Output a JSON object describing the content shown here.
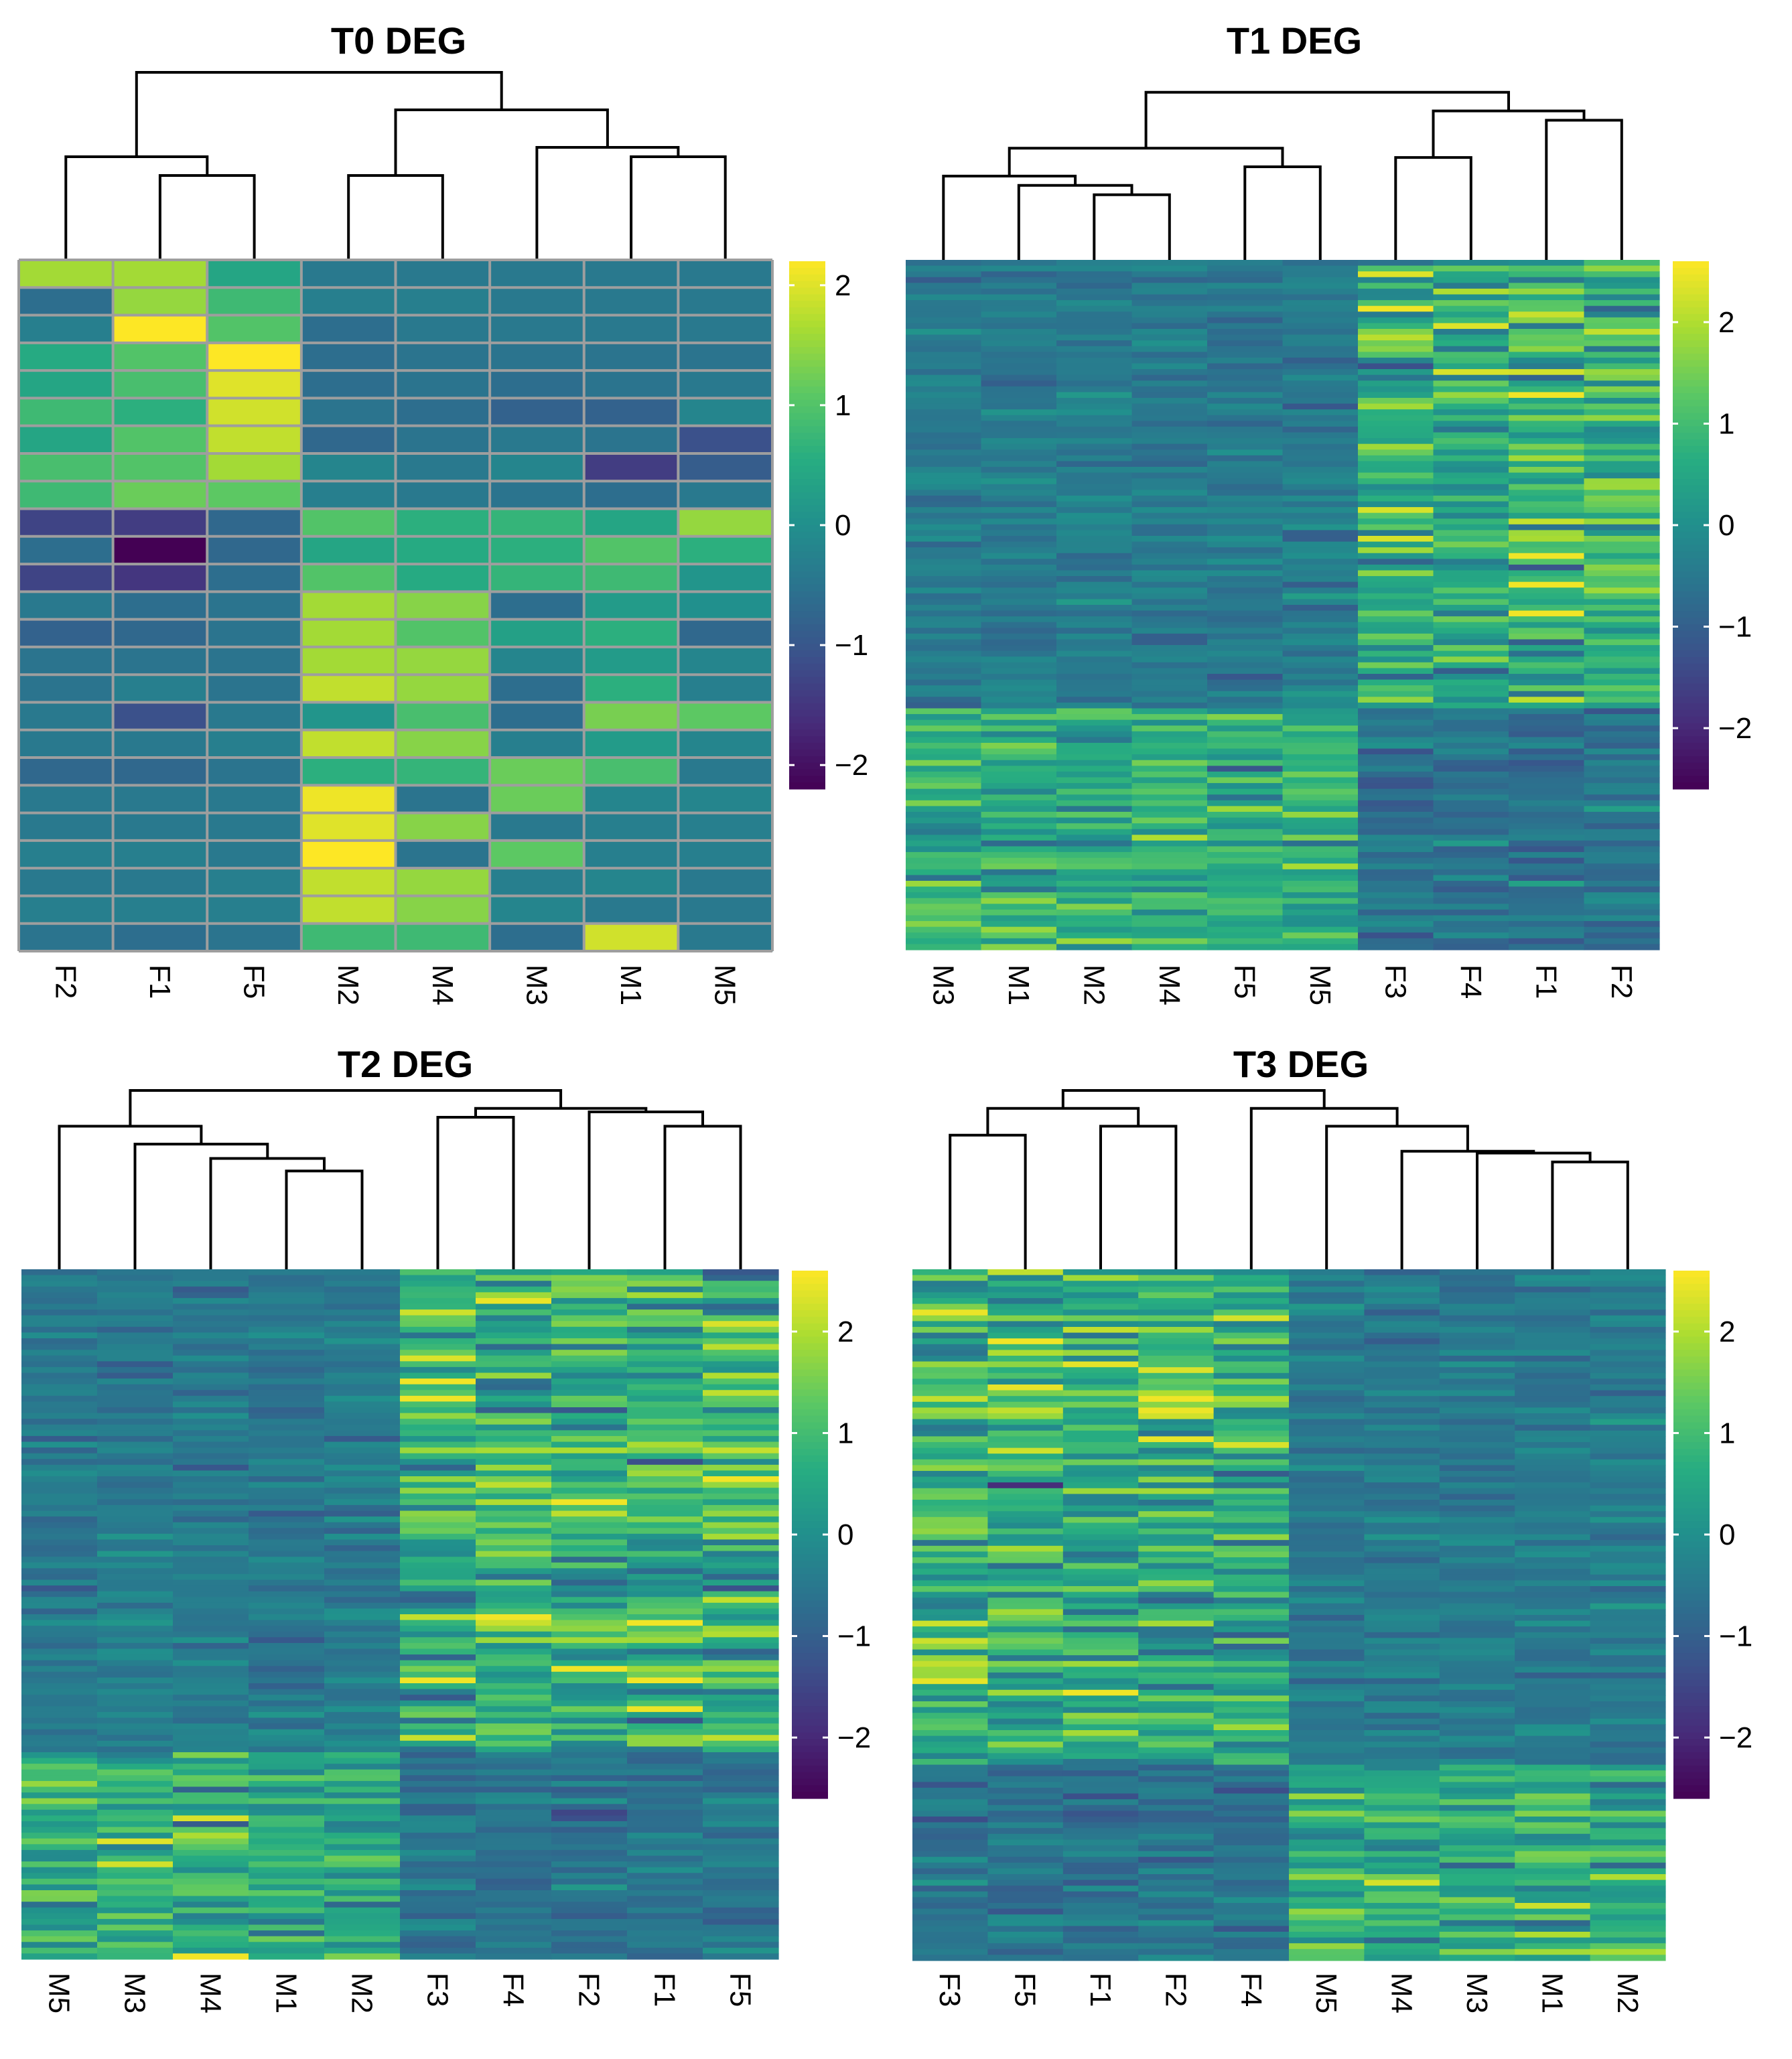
{
  "chart_data": [
    {
      "type": "heatmap",
      "title": "T0 DEG",
      "columns": [
        "F2",
        "F1",
        "F5",
        "M2",
        "M4",
        "M3",
        "M1",
        "M5"
      ],
      "legend": {
        "ticks": [
          2,
          1,
          0,
          -1,
          -2
        ],
        "range": [
          -2.2,
          2.2
        ]
      },
      "values": [
        [
          1.6,
          1.6,
          0.4,
          -0.4,
          -0.4,
          -0.4,
          -0.4,
          -0.4
        ],
        [
          -0.6,
          1.5,
          0.8,
          -0.3,
          -0.3,
          -0.4,
          -0.4,
          -0.4
        ],
        [
          -0.3,
          2.2,
          1.0,
          -0.6,
          -0.4,
          -0.4,
          -0.4,
          -0.4
        ],
        [
          0.5,
          1.0,
          2.2,
          -0.6,
          -0.5,
          -0.5,
          -0.5,
          -0.5
        ],
        [
          0.4,
          0.9,
          2.0,
          -0.6,
          -0.5,
          -0.6,
          -0.5,
          -0.4
        ],
        [
          0.8,
          0.6,
          1.9,
          -0.5,
          -0.6,
          -0.8,
          -0.8,
          -0.2
        ],
        [
          0.4,
          1.0,
          1.8,
          -0.7,
          -0.5,
          -0.4,
          -0.5,
          -1.1
        ],
        [
          0.9,
          1.0,
          1.6,
          -0.2,
          -0.4,
          -0.2,
          -1.4,
          -0.9
        ],
        [
          0.8,
          1.2,
          1.1,
          -0.3,
          -0.4,
          -0.5,
          -0.6,
          -0.4
        ],
        [
          -1.3,
          -1.4,
          -0.7,
          1.0,
          0.6,
          0.7,
          0.4,
          1.5
        ],
        [
          -0.6,
          -2.2,
          -0.7,
          0.4,
          0.5,
          0.6,
          1.0,
          0.6
        ],
        [
          -1.3,
          -1.5,
          -0.6,
          1.0,
          0.5,
          0.7,
          0.8,
          0.1
        ],
        [
          -0.4,
          -0.6,
          -0.5,
          1.6,
          1.4,
          -0.6,
          0.2,
          0.0
        ],
        [
          -0.8,
          -0.7,
          -0.5,
          1.6,
          1.0,
          0.3,
          0.6,
          -0.7
        ],
        [
          -0.5,
          -0.5,
          -0.5,
          1.6,
          1.5,
          -0.2,
          0.2,
          -0.2
        ],
        [
          -0.5,
          -0.3,
          -0.5,
          1.8,
          1.5,
          -0.6,
          0.6,
          -0.3
        ],
        [
          -0.4,
          -1.1,
          -0.4,
          0.1,
          0.9,
          -0.6,
          1.3,
          1.1
        ],
        [
          -0.4,
          -0.4,
          -0.3,
          1.8,
          1.4,
          -0.3,
          0.2,
          -0.2
        ],
        [
          -0.7,
          -0.7,
          -0.5,
          0.6,
          0.7,
          1.2,
          0.9,
          -0.4
        ],
        [
          -0.4,
          -0.4,
          -0.4,
          2.1,
          -0.5,
          1.2,
          -0.2,
          -0.2
        ],
        [
          -0.4,
          -0.4,
          -0.4,
          2.0,
          1.4,
          -0.4,
          -0.3,
          -0.3
        ],
        [
          -0.3,
          -0.3,
          -0.4,
          2.2,
          -0.5,
          1.1,
          -0.3,
          -0.3
        ],
        [
          -0.4,
          -0.4,
          -0.3,
          1.8,
          1.5,
          -0.3,
          -0.2,
          -0.4
        ],
        [
          -0.3,
          -0.3,
          -0.3,
          1.8,
          1.4,
          -0.2,
          -0.4,
          -0.4
        ],
        [
          -0.5,
          -0.6,
          -0.5,
          0.8,
          0.8,
          -0.6,
          1.9,
          -0.4
        ]
      ],
      "dendrogram": {
        "leaves": [
          "F2",
          "F1",
          "F5",
          "M2",
          "M4",
          "M3",
          "M1",
          "M5"
        ],
        "merges": [
          [
            1,
            2,
            0.45
          ],
          [
            0,
            8,
            0.55
          ],
          [
            3,
            4,
            0.45
          ],
          [
            6,
            7,
            0.55
          ],
          [
            5,
            11,
            0.6
          ],
          [
            10,
            12,
            0.8
          ],
          [
            9,
            13,
            1.0
          ]
        ]
      }
    },
    {
      "type": "heatmap",
      "title": "T1 DEG",
      "columns": [
        "M3",
        "M1",
        "M2",
        "M4",
        "F5",
        "M5",
        "F3",
        "F4",
        "F1",
        "F2"
      ],
      "legend": {
        "ticks": [
          2,
          1,
          0,
          -1,
          -2
        ],
        "range": [
          -2.6,
          2.6
        ]
      },
      "row_count": 120,
      "value_pattern": "upper ~65% of genes elevated in F3, F4, F1, F2 (up to +2.5) and near baseline in M3, M1, M2, M4, F5, M5; lower ~35% elevated in M3, M1, M2, M4 (+0.5 to +2) and reduced in F samples",
      "dendrogram": {
        "leaves": [
          "M3",
          "M1",
          "M2",
          "M4",
          "F5",
          "M5",
          "F3",
          "F4",
          "F1",
          "F2"
        ],
        "merges": [
          [
            2,
            3,
            0.35
          ],
          [
            1,
            10,
            0.4
          ],
          [
            0,
            11,
            0.45
          ],
          [
            4,
            5,
            0.5
          ],
          [
            12,
            13,
            0.6
          ],
          [
            8,
            9,
            0.75
          ],
          [
            6,
            7,
            0.55
          ],
          [
            16,
            15,
            0.8
          ],
          [
            14,
            17,
            0.9
          ]
        ]
      }
    },
    {
      "type": "heatmap",
      "title": "T2 DEG",
      "columns": [
        "M5",
        "M3",
        "M4",
        "M1",
        "M2",
        "F3",
        "F4",
        "F2",
        "F1",
        "F5"
      ],
      "legend": {
        "ticks": [
          2,
          1,
          0,
          -1,
          -2
        ],
        "range": [
          -2.6,
          2.6
        ]
      },
      "row_count": 120,
      "value_pattern": "upper ~70% of genes elevated in F3, F4, F2, F1, F5 (up to +2.5) and slightly reduced in M samples; lower ~30% elevated in M5, M3, M4, M1, M2 and reduced in F samples",
      "dendrogram": {
        "leaves": [
          "M5",
          "M3",
          "M4",
          "M1",
          "M2",
          "F3",
          "F4",
          "F2",
          "F1",
          "F5"
        ],
        "merges": [
          [
            3,
            4,
            0.55
          ],
          [
            2,
            10,
            0.62
          ],
          [
            1,
            11,
            0.7
          ],
          [
            0,
            12,
            0.8
          ],
          [
            8,
            9,
            0.8
          ],
          [
            7,
            14,
            0.88
          ],
          [
            5,
            6,
            0.85
          ],
          [
            16,
            15,
            0.9
          ],
          [
            13,
            17,
            1.0
          ]
        ]
      }
    },
    {
      "type": "heatmap",
      "title": "T3 DEG",
      "columns": [
        "F3",
        "F5",
        "F1",
        "F2",
        "F4",
        "M5",
        "M4",
        "M3",
        "M1",
        "M2"
      ],
      "legend": {
        "ticks": [
          2,
          1,
          0,
          -1,
          -2
        ],
        "range": [
          -2.6,
          2.6
        ]
      },
      "row_count": 120,
      "value_pattern": "upper ~72% of genes elevated in F3, F5, F1, F2, F4 (up to +2.3) and reduced in M samples; lower ~28% elevated in M5, M4, M3, M1, M2 and reduced in F samples",
      "dendrogram": {
        "leaves": [
          "F3",
          "F5",
          "F1",
          "F2",
          "F4",
          "M5",
          "M4",
          "M3",
          "M1",
          "M2"
        ],
        "merges": [
          [
            0,
            1,
            0.75
          ],
          [
            2,
            3,
            0.8
          ],
          [
            10,
            11,
            0.9
          ],
          [
            8,
            9,
            0.6
          ],
          [
            7,
            13,
            0.65
          ],
          [
            6,
            14,
            0.66
          ],
          [
            5,
            15,
            0.8
          ],
          [
            4,
            16,
            0.9
          ],
          [
            12,
            17,
            1.0
          ]
        ]
      }
    }
  ]
}
